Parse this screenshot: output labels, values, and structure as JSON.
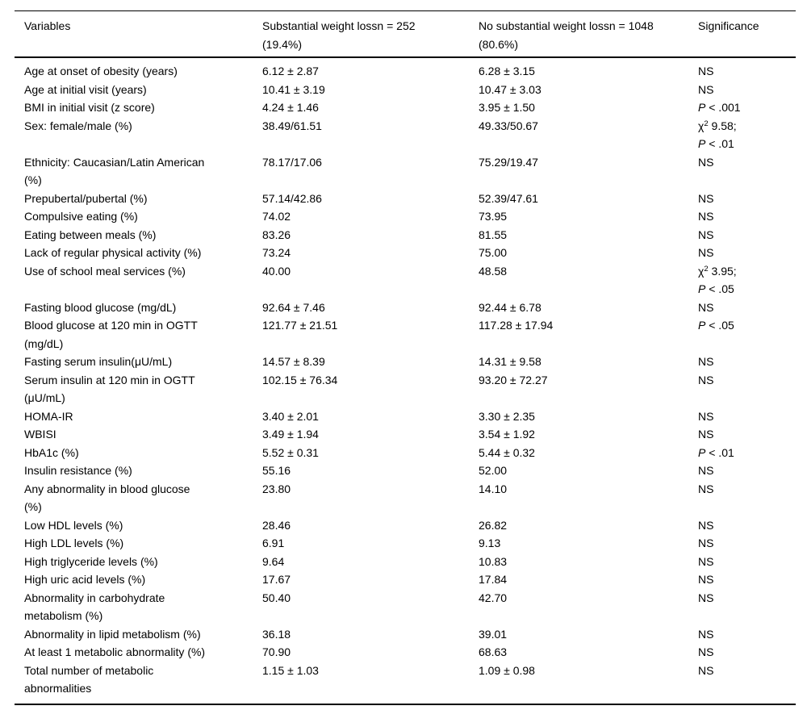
{
  "page": {
    "background_color": "#ffffff",
    "text_color": "#000000",
    "rule_color": "#000000"
  },
  "table": {
    "columns": [
      {
        "id": "variables",
        "lines": [
          "Variables"
        ]
      },
      {
        "id": "substantial-weight-loss-group",
        "lines": [
          "Substantial weight lossn = 252",
          "(19.4%)"
        ]
      },
      {
        "id": "no-substantial-weight-loss-group",
        "lines": [
          "No substantial weight lossn = 1048",
          "(80.6%)"
        ]
      },
      {
        "id": "significance",
        "lines": [
          "Significance"
        ]
      }
    ],
    "rows": [
      {
        "variable": [
          "Age at onset of obesity (years)"
        ],
        "substantial": "6.12 ± 2.87",
        "no_substantial": "6.28 ± 3.15",
        "sig": [
          {
            "t": "NS"
          }
        ]
      },
      {
        "variable": [
          "Age at initial visit (years)"
        ],
        "substantial": "10.41 ± 3.19",
        "no_substantial": "10.47 ± 3.03",
        "sig": [
          {
            "t": "NS"
          }
        ]
      },
      {
        "variable": [
          "BMI in initial visit (z score)"
        ],
        "substantial": "4.24 ± 1.46",
        "no_substantial": "3.95 ± 1.50",
        "sig": [
          {
            "t": "P",
            "i": true
          },
          {
            "t": " < .001"
          }
        ]
      },
      {
        "variable": [
          "Sex: female/male (%)"
        ],
        "substantial": "38.49/61.51",
        "no_substantial": "49.33/50.67",
        "sig": [
          {
            "t": "χ"
          },
          {
            "t": "2",
            "sup": true
          },
          {
            "t": " 9.58;"
          },
          {
            "br": true
          },
          {
            "t": "P",
            "i": true
          },
          {
            "t": " < .01"
          }
        ]
      },
      {
        "variable": [
          "Ethnicity: Caucasian/Latin American",
          "(%)"
        ],
        "substantial": "78.17/17.06",
        "no_substantial": "75.29/19.47",
        "sig": [
          {
            "t": "NS"
          }
        ]
      },
      {
        "variable": [
          "Prepubertal/pubertal (%)"
        ],
        "substantial": "57.14/42.86",
        "no_substantial": "52.39/47.61",
        "sig": [
          {
            "t": "NS"
          }
        ]
      },
      {
        "variable": [
          "Compulsive eating (%)"
        ],
        "substantial": "74.02",
        "no_substantial": "73.95",
        "sig": [
          {
            "t": "NS"
          }
        ]
      },
      {
        "variable": [
          "Eating between meals (%)"
        ],
        "substantial": "83.26",
        "no_substantial": "81.55",
        "sig": [
          {
            "t": "NS"
          }
        ]
      },
      {
        "variable": [
          "Lack of regular physical activity (%)"
        ],
        "substantial": "73.24",
        "no_substantial": "75.00",
        "sig": [
          {
            "t": "NS"
          }
        ]
      },
      {
        "variable": [
          "Use of school meal services (%)"
        ],
        "substantial": "40.00",
        "no_substantial": "48.58",
        "sig": [
          {
            "t": "χ"
          },
          {
            "t": "2",
            "sup": true
          },
          {
            "t": " 3.95;"
          },
          {
            "br": true
          },
          {
            "t": "P",
            "i": true
          },
          {
            "t": " < .05"
          }
        ]
      },
      {
        "variable": [
          "Fasting blood glucose (mg/dL)"
        ],
        "substantial": "92.64 ± 7.46",
        "no_substantial": "92.44 ± 6.78",
        "sig": [
          {
            "t": "NS"
          }
        ]
      },
      {
        "variable": [
          "Blood glucose at 120 min in OGTT",
          "(mg/dL)"
        ],
        "substantial": "121.77 ± 21.51",
        "no_substantial": "117.28 ± 17.94",
        "sig": [
          {
            "t": "P",
            "i": true
          },
          {
            "t": " < .05"
          }
        ]
      },
      {
        "variable": [
          "Fasting serum insulin(μU/mL)"
        ],
        "substantial": "14.57 ± 8.39",
        "no_substantial": "14.31 ± 9.58",
        "sig": [
          {
            "t": "NS"
          }
        ]
      },
      {
        "variable": [
          "Serum insulin at 120 min in OGTT",
          "(μU/mL)"
        ],
        "substantial": "102.15 ± 76.34",
        "no_substantial": "93.20 ± 72.27",
        "sig": [
          {
            "t": "NS"
          }
        ]
      },
      {
        "variable": [
          "HOMA-IR"
        ],
        "substantial": "3.40 ± 2.01",
        "no_substantial": "3.30 ± 2.35",
        "sig": [
          {
            "t": "NS"
          }
        ]
      },
      {
        "variable": [
          "WBISI"
        ],
        "substantial": "3.49 ± 1.94",
        "no_substantial": "3.54 ± 1.92",
        "sig": [
          {
            "t": "NS"
          }
        ]
      },
      {
        "variable": [
          "HbA1c (%)"
        ],
        "substantial": "5.52 ± 0.31",
        "no_substantial": "5.44 ± 0.32",
        "sig": [
          {
            "t": "P",
            "i": true
          },
          {
            "t": " < .01"
          }
        ]
      },
      {
        "variable": [
          "Insulin resistance (%)"
        ],
        "substantial": "55.16",
        "no_substantial": "52.00",
        "sig": [
          {
            "t": "NS"
          }
        ]
      },
      {
        "variable": [
          "Any abnormality in blood glucose",
          "(%)"
        ],
        "substantial": "23.80",
        "no_substantial": "14.10",
        "sig": [
          {
            "t": "NS"
          }
        ]
      },
      {
        "variable": [
          "Low HDL levels (%)"
        ],
        "substantial": "28.46",
        "no_substantial": "26.82",
        "sig": [
          {
            "t": "NS"
          }
        ]
      },
      {
        "variable": [
          "High LDL levels (%)"
        ],
        "substantial": "6.91",
        "no_substantial": "9.13",
        "sig": [
          {
            "t": "NS"
          }
        ]
      },
      {
        "variable": [
          "High triglyceride levels (%)"
        ],
        "substantial": "9.64",
        "no_substantial": "10.83",
        "sig": [
          {
            "t": "NS"
          }
        ]
      },
      {
        "variable": [
          "High uric acid levels (%)"
        ],
        "substantial": "17.67",
        "no_substantial": "17.84",
        "sig": [
          {
            "t": "NS"
          }
        ]
      },
      {
        "variable": [
          "Abnormality in carbohydrate",
          "metabolism (%)"
        ],
        "substantial": "50.40",
        "no_substantial": "42.70",
        "sig": [
          {
            "t": "NS"
          }
        ]
      },
      {
        "variable": [
          "Abnormality in lipid metabolism (%)"
        ],
        "substantial": "36.18",
        "no_substantial": "39.01",
        "sig": [
          {
            "t": "NS"
          }
        ]
      },
      {
        "variable": [
          "At least 1 metabolic abnormality (%)"
        ],
        "substantial": "70.90",
        "no_substantial": "68.63",
        "sig": [
          {
            "t": "NS"
          }
        ]
      },
      {
        "variable": [
          "Total number of metabolic",
          "abnormalities"
        ],
        "substantial": "1.15 ± 1.03",
        "no_substantial": "1.09 ± 0.98",
        "sig": [
          {
            "t": "NS"
          }
        ]
      }
    ]
  }
}
